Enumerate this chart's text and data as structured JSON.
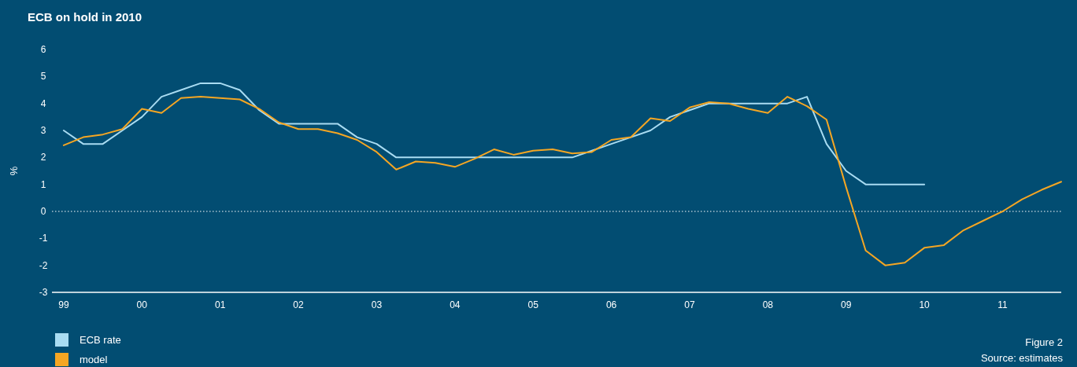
{
  "chart_data": {
    "type": "line",
    "title": "ECB on hold in 2010",
    "ylabel": "%",
    "x": [
      1999,
      1999.25,
      1999.5,
      1999.75,
      2000,
      2000.25,
      2000.5,
      2000.75,
      2001,
      2001.25,
      2001.5,
      2001.75,
      2002,
      2002.25,
      2002.5,
      2002.75,
      2003,
      2003.25,
      2003.5,
      2003.75,
      2004,
      2004.25,
      2004.5,
      2004.75,
      2005,
      2005.25,
      2005.5,
      2005.75,
      2006,
      2006.25,
      2006.5,
      2006.75,
      2007,
      2007.25,
      2007.5,
      2007.75,
      2008,
      2008.25,
      2008.5,
      2008.75,
      2009,
      2009.25,
      2009.5,
      2009.75,
      2010,
      2010.25,
      2010.5,
      2010.75,
      2011,
      2011.25,
      2011.5,
      2011.75
    ],
    "series": [
      {
        "name": "ECB rate",
        "color": "#a9dcf2",
        "values": [
          3,
          2.5,
          2.5,
          3,
          3.5,
          4.25,
          4.5,
          4.75,
          4.75,
          4.5,
          3.75,
          3.25,
          3.25,
          3.25,
          3.25,
          2.75,
          2.5,
          2,
          2,
          2,
          2,
          2,
          2,
          2,
          2,
          2,
          2,
          2.25,
          2.5,
          2.75,
          3,
          3.5,
          3.75,
          4,
          4,
          4,
          4,
          4,
          4.25,
          2.5,
          1.5,
          1,
          1,
          1,
          1,
          null,
          null,
          null,
          null,
          null,
          null,
          null
        ]
      },
      {
        "name": "model",
        "color": "#f5a623",
        "values": [
          2.45,
          2.75,
          2.85,
          3.05,
          3.8,
          3.65,
          4.2,
          4.25,
          4.2,
          4.15,
          3.8,
          3.3,
          3.05,
          3.05,
          2.9,
          2.65,
          2.2,
          1.55,
          1.85,
          1.8,
          1.65,
          1.95,
          2.3,
          2.1,
          2.25,
          2.3,
          2.15,
          2.2,
          2.65,
          2.75,
          3.45,
          3.35,
          3.85,
          4.05,
          4,
          3.8,
          3.65,
          4.25,
          3.9,
          3.4,
          0.9,
          -1.45,
          -2,
          -1.9,
          -1.35,
          -1.25,
          -0.7,
          -0.35,
          0,
          0.45,
          0.8,
          1.1
        ]
      }
    ],
    "xlim": [
      1998.85,
      2011.75
    ],
    "xticks": [
      {
        "value": 1999,
        "label": "99"
      },
      {
        "value": 2000,
        "label": "00"
      },
      {
        "value": 2001,
        "label": "01"
      },
      {
        "value": 2002,
        "label": "02"
      },
      {
        "value": 2003,
        "label": "03"
      },
      {
        "value": 2004,
        "label": "04"
      },
      {
        "value": 2005,
        "label": "05"
      },
      {
        "value": 2006,
        "label": "06"
      },
      {
        "value": 2007,
        "label": "07"
      },
      {
        "value": 2008,
        "label": "08"
      },
      {
        "value": 2009,
        "label": "09"
      },
      {
        "value": 2010,
        "label": "10"
      },
      {
        "value": 2011,
        "label": "11"
      }
    ],
    "ylim": [
      -3,
      6
    ],
    "yticks": [
      -3,
      -2,
      -1,
      0,
      1,
      2,
      3,
      4,
      5,
      6
    ],
    "ref_lines": [
      {
        "axis": "y",
        "value": 0,
        "color": "#ffffff",
        "line_style": "dotted"
      }
    ],
    "legend": "bottom left",
    "grid": false,
    "marker": "none",
    "line_style": "solid",
    "annotations": [
      "Figure 2",
      "Source: estimates"
    ]
  }
}
